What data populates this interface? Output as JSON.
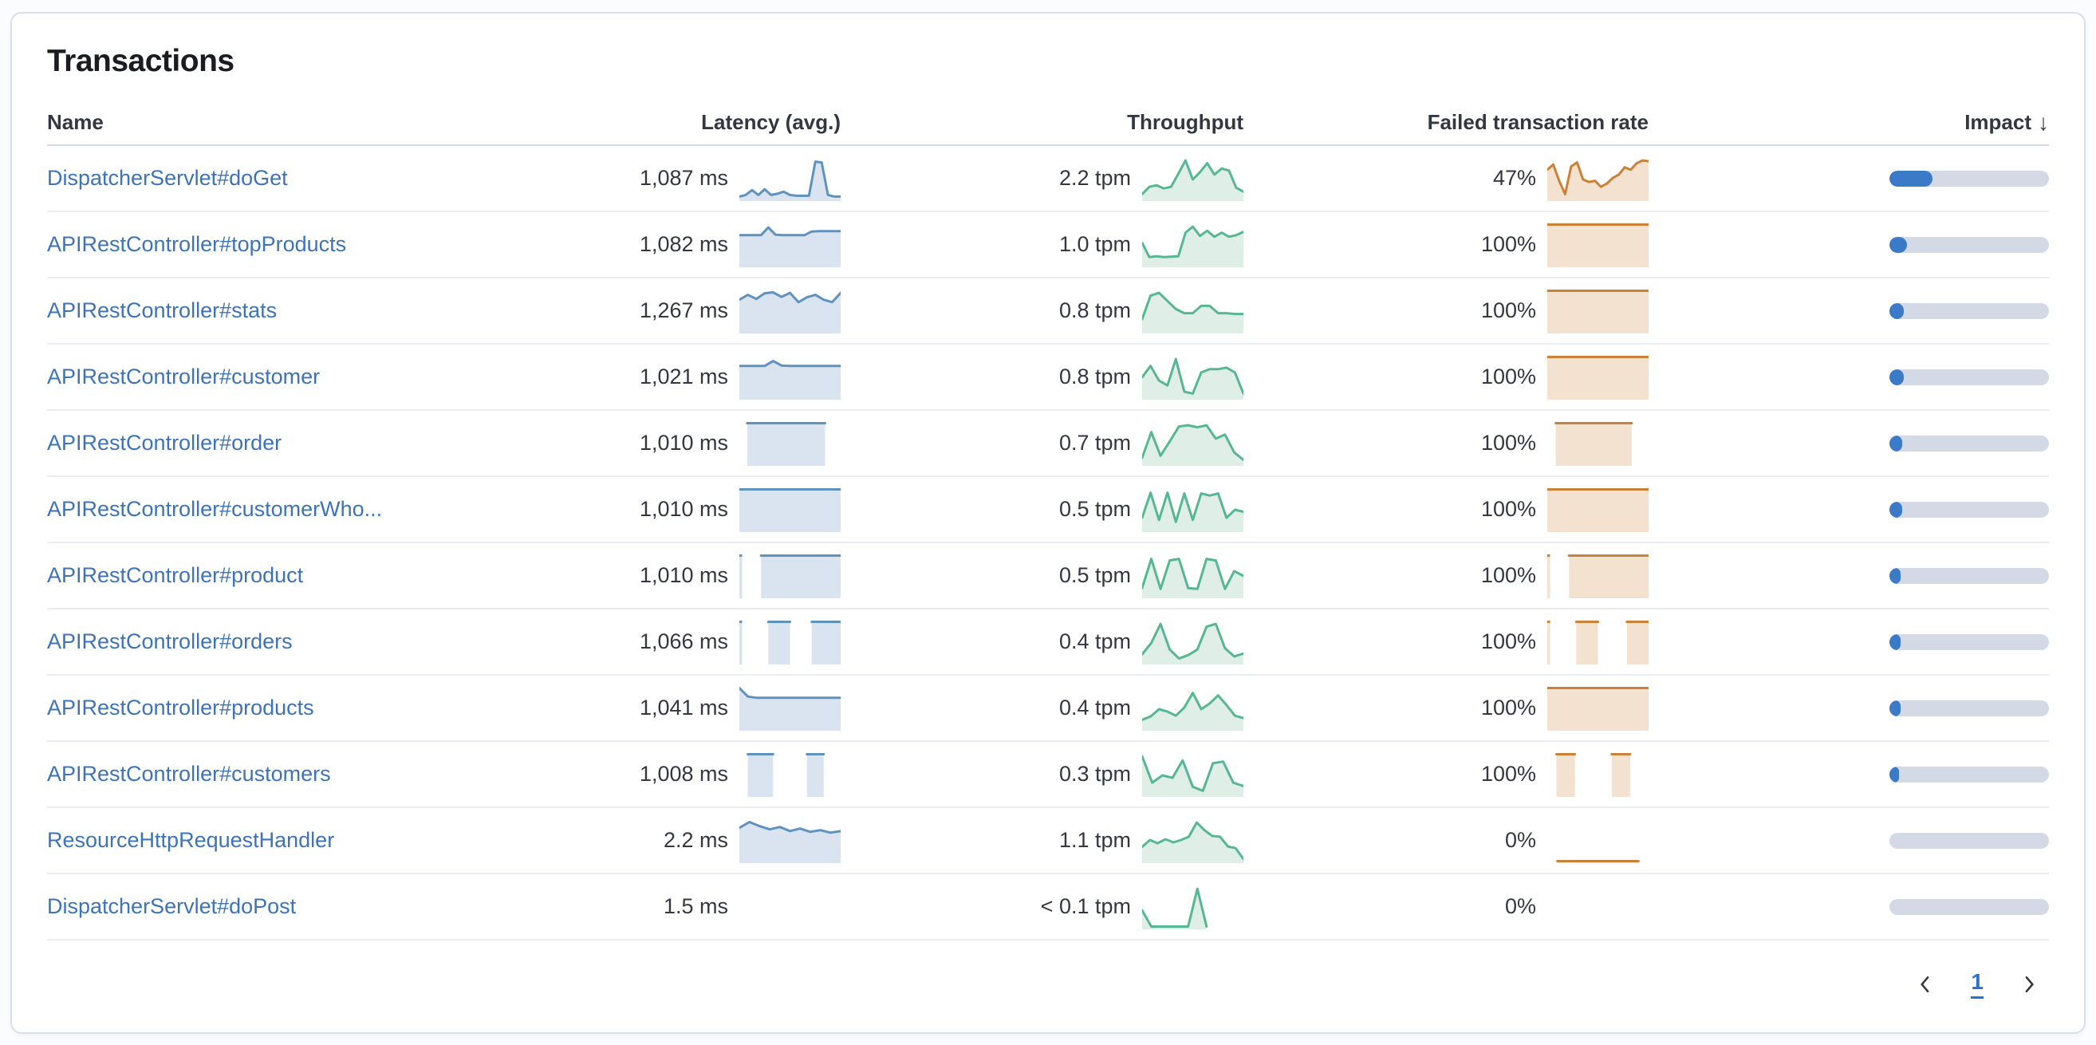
{
  "card": {
    "title": "Transactions"
  },
  "table": {
    "columns": {
      "name": "Name",
      "latency": "Latency (avg.)",
      "throughput": "Throughput",
      "failed": "Failed transaction rate",
      "impact": "Impact"
    },
    "sort": {
      "column": "impact",
      "direction": "desc",
      "icon": "arrow-down",
      "glyph": "↓"
    }
  },
  "colors": {
    "link": "#3d73b9",
    "latency_line": "#6092c0",
    "latency_fill": "#dae4f1",
    "throughput_line": "#57b794",
    "throughput_fill": "#dfeee7",
    "failed_line": "#cb8238",
    "failed_fill": "#f3e2cf",
    "impact_fill": "#3b7ac7",
    "impact_track": "#d3dae6"
  },
  "rows": [
    {
      "name": "DispatcherServlet#doGet",
      "latency": "1,087 ms",
      "throughput": "2.2 tpm",
      "failed_rate": "47%",
      "impact_pct": 27,
      "latency_spark": [
        0.06,
        0.1,
        0.22,
        0.1,
        0.24,
        0.1,
        0.13,
        0.18,
        0.1,
        0.08,
        0.08,
        0.08,
        0.92,
        0.9,
        0.1,
        0.06,
        0.06
      ],
      "throughput_spark": [
        0.12,
        0.3,
        0.34,
        0.26,
        0.3,
        0.62,
        0.95,
        0.48,
        0.66,
        0.88,
        0.6,
        0.75,
        0.7,
        0.28,
        0.18
      ],
      "failed_spark": [
        0.72,
        0.85,
        0.45,
        0.12,
        0.8,
        0.9,
        0.48,
        0.42,
        0.45,
        0.3,
        0.38,
        0.52,
        0.6,
        0.78,
        0.72,
        0.88,
        0.95,
        0.93
      ]
    },
    {
      "name": "APIRestController#topProducts",
      "latency": "1,082 ms",
      "throughput": "1.0 tpm",
      "failed_rate": "100%",
      "impact_pct": 11,
      "latency_spark": [
        0.74,
        0.74,
        0.74,
        0.74,
        0.93,
        0.75,
        0.74,
        0.74,
        0.74,
        0.74,
        0.83,
        0.84,
        0.84,
        0.84,
        0.84
      ],
      "throughput_spark": [
        0.55,
        0.2,
        0.22,
        0.2,
        0.21,
        0.22,
        0.8,
        0.95,
        0.72,
        0.85,
        0.7,
        0.8,
        0.7,
        0.74,
        0.82
      ],
      "failed_spark": [
        1,
        1,
        1,
        1,
        1,
        1,
        1,
        1,
        1,
        1,
        1,
        1
      ]
    },
    {
      "name": "APIRestController#stats",
      "latency": "1,267 ms",
      "throughput": "0.8 tpm",
      "failed_rate": "100%",
      "impact_pct": 9,
      "latency_spark": [
        0.78,
        0.9,
        0.8,
        0.94,
        0.96,
        0.85,
        0.95,
        0.72,
        0.84,
        0.9,
        0.78,
        0.72,
        0.95
      ],
      "throughput_spark": [
        0.3,
        0.88,
        0.95,
        0.75,
        0.55,
        0.45,
        0.45,
        0.63,
        0.63,
        0.45,
        0.45,
        0.43,
        0.43
      ],
      "failed_spark": [
        1,
        1,
        1,
        1,
        1,
        1,
        1,
        1,
        1,
        1,
        1,
        1
      ]
    },
    {
      "name": "APIRestController#customer",
      "latency": "1,021 ms",
      "throughput": "0.8 tpm",
      "failed_rate": "100%",
      "impact_pct": 9,
      "latency_spark": [
        0.78,
        0.78,
        0.78,
        0.78,
        0.9,
        0.79,
        0.78,
        0.78,
        0.78,
        0.78,
        0.78,
        0.78,
        0.78
      ],
      "throughput_spark": [
        0.5,
        0.78,
        0.42,
        0.3,
        0.95,
        0.15,
        0.1,
        0.62,
        0.7,
        0.7,
        0.74,
        0.62,
        0.1
      ],
      "failed_spark": [
        1,
        1,
        1,
        1,
        1,
        1,
        1,
        1,
        1,
        1,
        1,
        1
      ]
    },
    {
      "name": "APIRestController#order",
      "latency": "1,010 ms",
      "throughput": "0.7 tpm",
      "failed_rate": "100%",
      "impact_pct": 8,
      "latency_spark": [
        null,
        1,
        1,
        1,
        1,
        1,
        1,
        1,
        1,
        1,
        1,
        1,
        null,
        null
      ],
      "throughput_spark": [
        0.15,
        0.78,
        0.2,
        0.55,
        0.92,
        0.95,
        0.9,
        0.95,
        0.62,
        0.72,
        0.28,
        0.1
      ],
      "failed_spark": [
        null,
        1,
        1,
        1,
        1,
        1,
        1,
        1,
        1,
        1,
        1,
        null,
        null
      ]
    },
    {
      "name": "APIRestController#customerWho...",
      "latency": "1,010 ms",
      "throughput": "0.5 tpm",
      "failed_rate": "100%",
      "impact_pct": 8,
      "latency_spark": [
        1,
        1,
        1,
        1,
        1,
        1,
        1,
        1,
        1,
        1,
        1,
        1
      ],
      "throughput_spark": [
        0.3,
        0.92,
        0.25,
        0.92,
        0.2,
        0.9,
        0.25,
        0.9,
        0.85,
        0.9,
        0.3,
        0.5,
        0.45
      ],
      "failed_spark": [
        1,
        1,
        1,
        1,
        1,
        1,
        1,
        1,
        1,
        1,
        1,
        1
      ]
    },
    {
      "name": "APIRestController#product",
      "latency": "1,010 ms",
      "throughput": "0.5 tpm",
      "failed_rate": "100%",
      "impact_pct": 7,
      "latency_spark": [
        1,
        null,
        null,
        1,
        1,
        1,
        1,
        1,
        1,
        1,
        1,
        1,
        1,
        1,
        1
      ],
      "throughput_spark": [
        0.2,
        0.92,
        0.18,
        0.88,
        0.92,
        0.2,
        0.18,
        0.92,
        0.88,
        0.18,
        0.62,
        0.5
      ],
      "failed_spark": [
        1,
        null,
        null,
        1,
        1,
        1,
        1,
        1,
        1,
        1,
        1,
        1,
        1,
        1,
        1
      ]
    },
    {
      "name": "APIRestController#orders",
      "latency": "1,066 ms",
      "throughput": "0.4 tpm",
      "failed_rate": "100%",
      "impact_pct": 7,
      "latency_spark": [
        1,
        null,
        null,
        null,
        1,
        1,
        1,
        1,
        null,
        null,
        1,
        1,
        1,
        1,
        1
      ],
      "throughput_spark": [
        0.2,
        0.48,
        0.95,
        0.32,
        0.1,
        0.18,
        0.32,
        0.88,
        0.95,
        0.35,
        0.15,
        0.22
      ],
      "failed_spark": [
        1,
        null,
        null,
        null,
        1,
        1,
        1,
        1,
        null,
        null,
        null,
        1,
        1,
        1,
        1
      ]
    },
    {
      "name": "APIRestController#products",
      "latency": "1,041 ms",
      "throughput": "0.4 tpm",
      "failed_rate": "100%",
      "impact_pct": 7,
      "latency_spark": [
        1,
        0.79,
        0.76,
        0.76,
        0.76,
        0.76,
        0.76,
        0.76,
        0.76,
        0.76,
        0.76,
        0.76,
        0.76
      ],
      "throughput_spark": [
        0.22,
        0.3,
        0.48,
        0.42,
        0.32,
        0.52,
        0.88,
        0.48,
        0.62,
        0.82,
        0.58,
        0.32,
        0.26
      ],
      "failed_spark": [
        1,
        1,
        1,
        1,
        1,
        1,
        1,
        1,
        1,
        1,
        1,
        1
      ]
    },
    {
      "name": "APIRestController#customers",
      "latency": "1,008 ms",
      "throughput": "0.3 tpm",
      "failed_rate": "100%",
      "impact_pct": 6,
      "latency_spark": [
        null,
        1,
        1,
        1,
        1,
        null,
        null,
        null,
        1,
        1,
        1,
        null,
        null
      ],
      "throughput_spark": [
        0.95,
        0.3,
        0.48,
        0.42,
        0.85,
        0.2,
        0.1,
        0.78,
        0.82,
        0.3,
        0.22
      ],
      "failed_spark": [
        null,
        1,
        1,
        1,
        null,
        null,
        null,
        1,
        1,
        1,
        null,
        null
      ]
    },
    {
      "name": "ResourceHttpRequestHandler",
      "latency": "2.2 ms",
      "throughput": "1.1 tpm",
      "failed_rate": "0%",
      "impact_pct": 0,
      "latency_spark": [
        0.82,
        0.96,
        0.86,
        0.78,
        0.84,
        0.74,
        0.8,
        0.72,
        0.76,
        0.7,
        0.74
      ],
      "throughput_spark": [
        0.35,
        0.52,
        0.44,
        0.54,
        0.46,
        0.52,
        0.6,
        0.95,
        0.76,
        0.62,
        0.6,
        0.36,
        0.32,
        0.05
      ],
      "failed_spark": [
        null,
        0,
        0,
        0,
        0,
        0,
        0,
        0,
        0,
        0,
        null
      ]
    },
    {
      "name": "DispatcherServlet#doPost",
      "latency": "1.5 ms",
      "throughput": "< 0.1 tpm",
      "failed_rate": "0%",
      "impact_pct": 0,
      "latency_spark": null,
      "throughput_spark": [
        0.42,
        0.02,
        0.02,
        0.02,
        0.02,
        0.02,
        0.95,
        0.02,
        null,
        null,
        null,
        null
      ],
      "failed_spark": null
    }
  ],
  "pagination": {
    "current_page": "1",
    "prev_icon": "chevron-left",
    "next_icon": "chevron-right"
  }
}
